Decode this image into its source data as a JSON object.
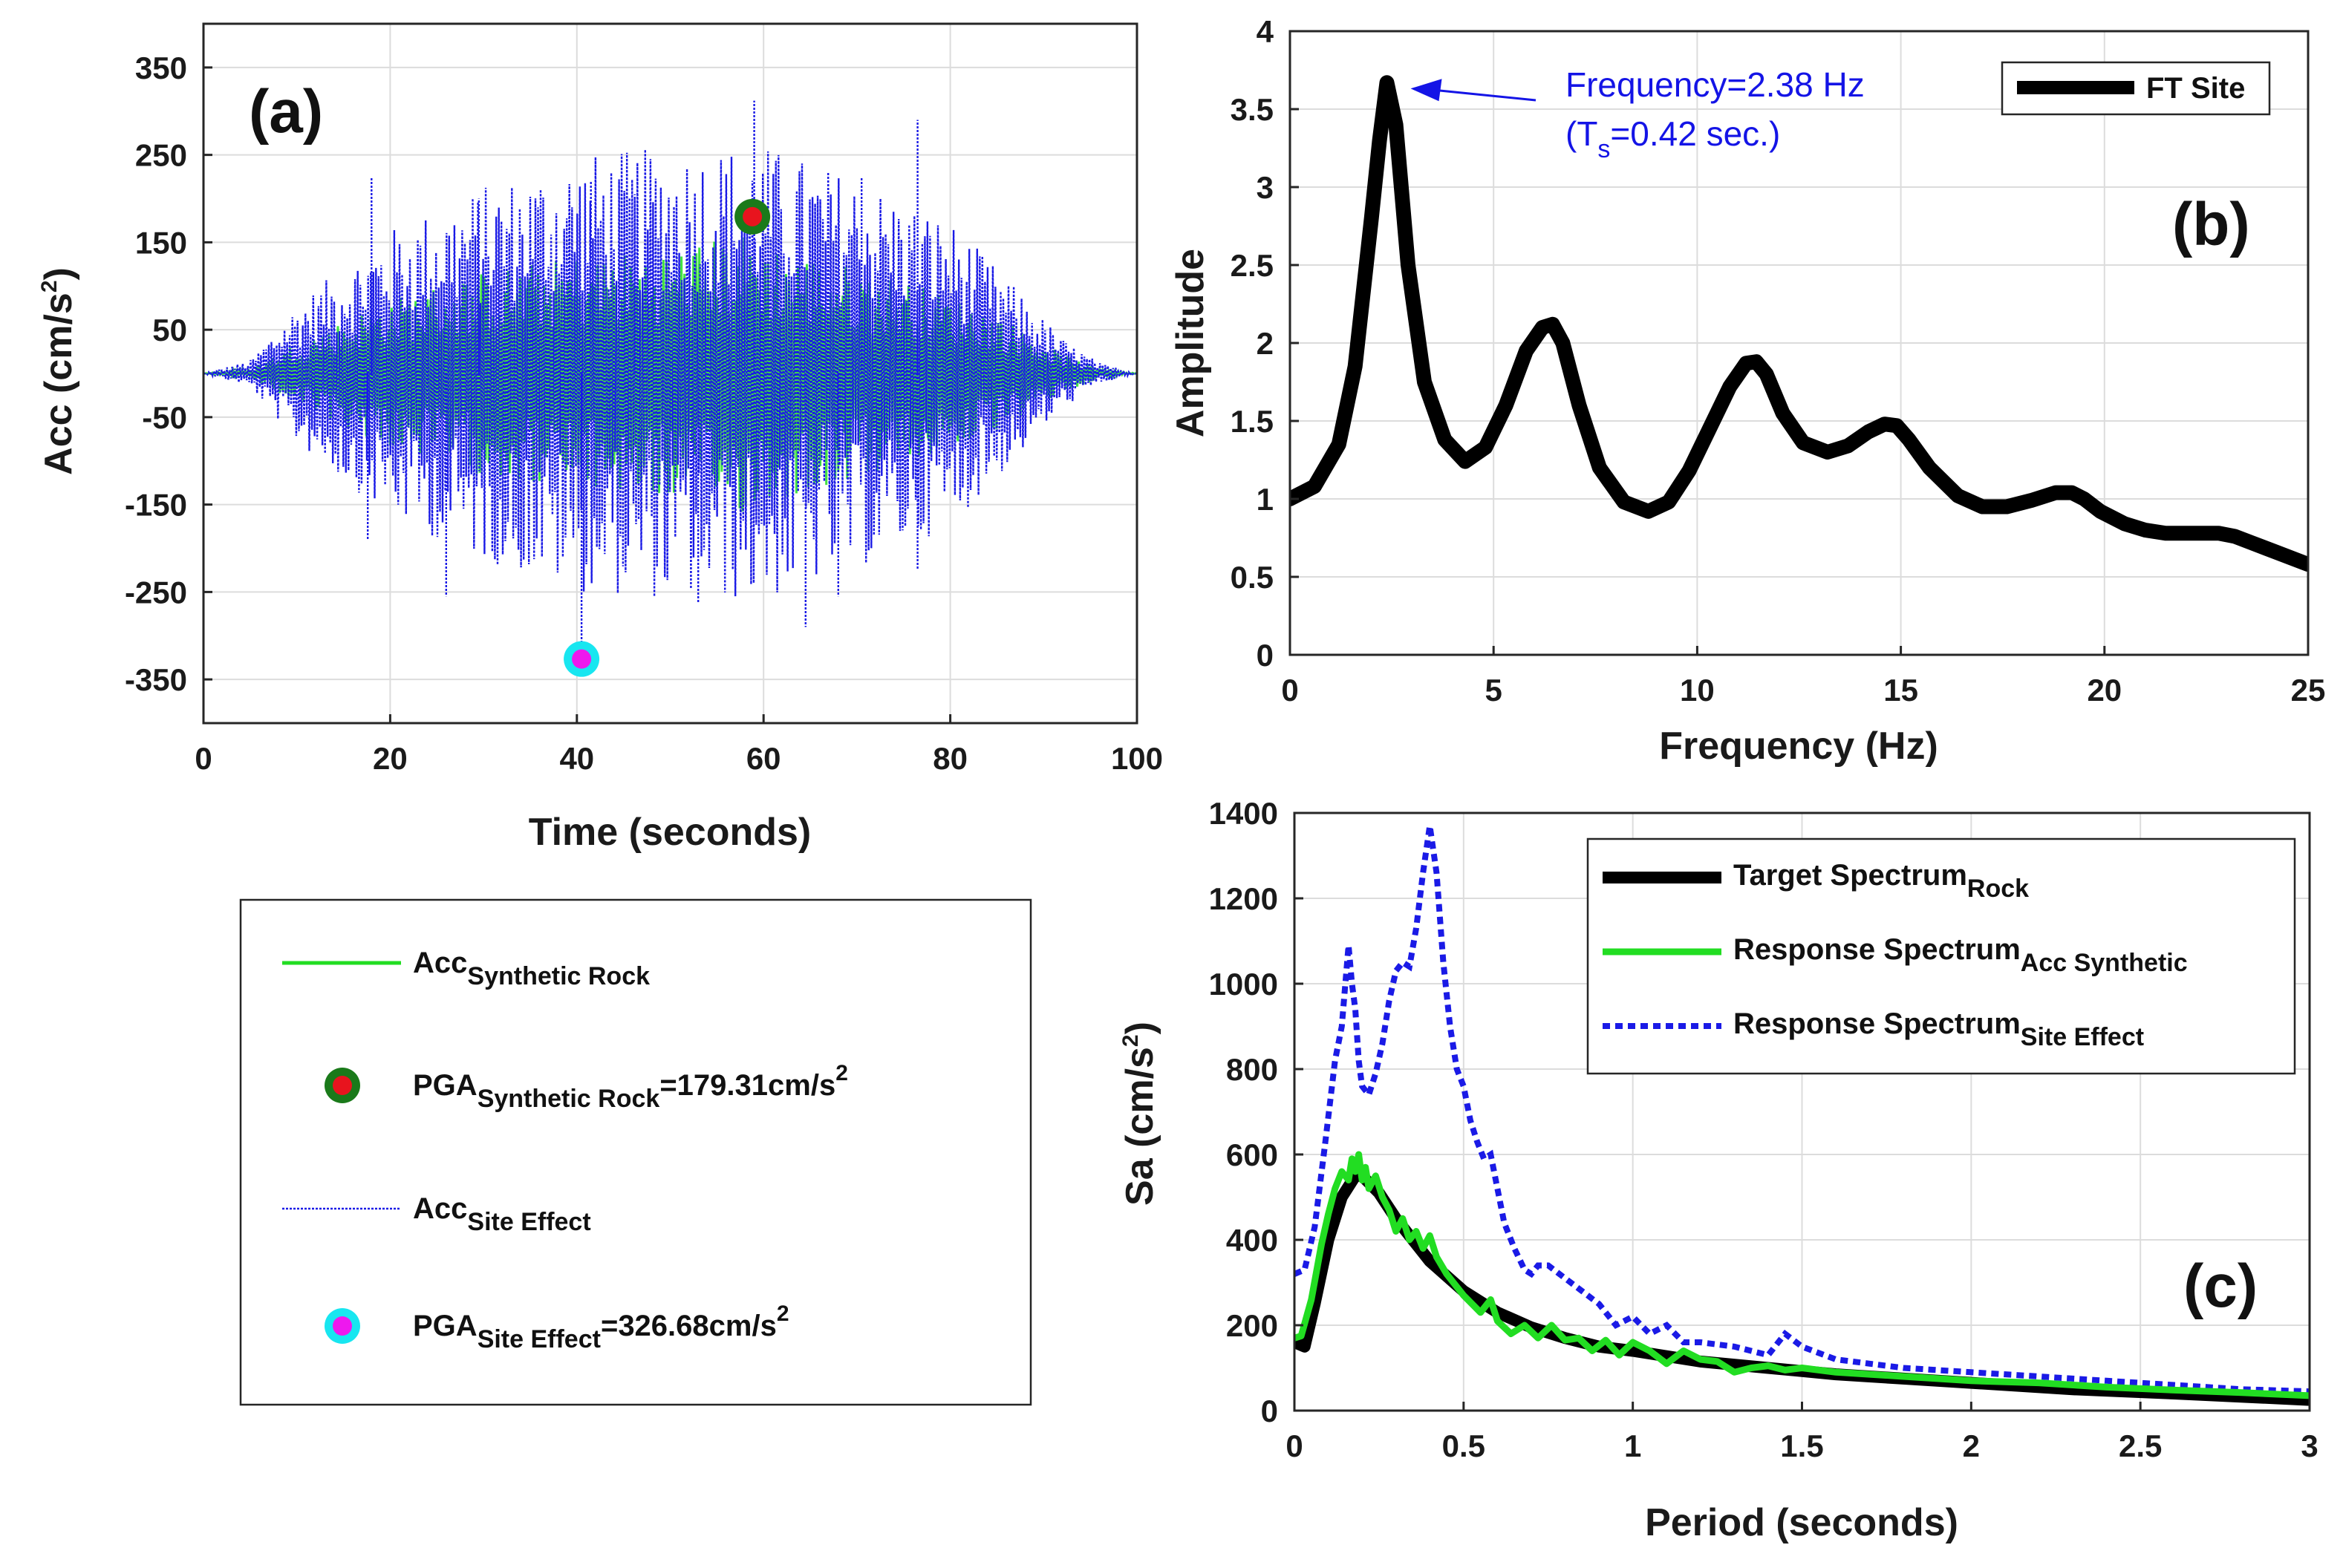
{
  "colors": {
    "rock": "#22dd22",
    "site": "#1a1ae6",
    "ft": "#000000",
    "target": "#000000",
    "pga_rock_fill": "#e8141e",
    "pga_rock_ring": "#1a7a1a",
    "pga_site_fill": "#ee18ee",
    "pga_site_ring": "#18e6f0",
    "annotation": "#1414e6",
    "grid": "#dcdcdc"
  },
  "chart_data": [
    {
      "id": "a",
      "type": "line",
      "panel_label": "(a)",
      "xlabel": "Time (seconds)",
      "ylabel": "Acc (cm/s",
      "ylabel_sup": "2",
      "ylabel_end": ")",
      "xlim": [
        0,
        100
      ],
      "ylim": [
        -400,
        400
      ],
      "xticks": [
        0,
        20,
        40,
        60,
        80,
        100
      ],
      "yticks": [
        350,
        250,
        150,
        50,
        -50,
        -150,
        -250,
        -350
      ],
      "grid": true,
      "series": [
        {
          "name": "Acc Synthetic Rock",
          "style": "solid",
          "envelope": [
            [
              0,
              0
            ],
            [
              5,
              6
            ],
            [
              10,
              40
            ],
            [
              20,
              95
            ],
            [
              30,
              130
            ],
            [
              40,
              150
            ],
            [
              50,
              160
            ],
            [
              58,
              179.31
            ],
            [
              65,
              150
            ],
            [
              75,
              120
            ],
            [
              85,
              75
            ],
            [
              92,
              25
            ],
            [
              96,
              6
            ],
            [
              100,
              0
            ]
          ]
        },
        {
          "name": "Acc Site Effect",
          "style": "dotted",
          "envelope": [
            [
              0,
              0
            ],
            [
              5,
              15
            ],
            [
              10,
              80
            ],
            [
              20,
              165
            ],
            [
              30,
              215
            ],
            [
              40,
              250
            ],
            [
              50,
              260
            ],
            [
              60,
              262
            ],
            [
              70,
              225
            ],
            [
              80,
              175
            ],
            [
              86,
              110
            ],
            [
              92,
              40
            ],
            [
              96,
              12
            ],
            [
              100,
              0
            ]
          ]
        }
      ],
      "spikes": [
        {
          "t": 40.5,
          "v": -326.68
        },
        {
          "t": 59.0,
          "v": 312
        },
        {
          "t": 76.5,
          "v": 290
        },
        {
          "t": 18.0,
          "v": 225
        },
        {
          "t": 17.6,
          "v": -190
        },
        {
          "t": 26.0,
          "v": -255
        },
        {
          "t": 41.5,
          "v": 220
        },
        {
          "t": 70.5,
          "v": 225
        },
        {
          "t": 68.0,
          "v": -255
        },
        {
          "t": 64.5,
          "v": -290
        },
        {
          "t": 76.5,
          "v": -225
        },
        {
          "t": 46.2,
          "v": 205
        },
        {
          "t": 53.0,
          "v": -262
        },
        {
          "t": 29.5,
          "v": 200
        }
      ],
      "markers": [
        {
          "name": "PGA Synthetic Rock",
          "t": 58.8,
          "v": 179.31,
          "kind": "rock"
        },
        {
          "name": "PGA Site Effect",
          "t": 40.5,
          "v": -326.68,
          "kind": "site"
        }
      ]
    },
    {
      "id": "b",
      "type": "line",
      "panel_label": "(b)",
      "xlabel": "Frequency (Hz)",
      "ylabel": "Amplitude",
      "xlim": [
        0,
        25
      ],
      "ylim": [
        0,
        4
      ],
      "xticks": [
        0,
        5,
        10,
        15,
        20,
        25
      ],
      "yticks": [
        0,
        0.5,
        1,
        1.5,
        2,
        2.5,
        3,
        3.5,
        4
      ],
      "grid": true,
      "legend": "FT Site",
      "annotation": {
        "line1": "Frequency=2.38 Hz",
        "line2_pre": "(T",
        "line2_sub": "s",
        "line2_post": "=0.42 sec.)",
        "peak_x": 2.38,
        "peak_y": 3.67
      },
      "series": [
        {
          "name": "FT Site",
          "x": [
            0,
            0.6,
            1.2,
            1.6,
            2.0,
            2.2,
            2.38,
            2.6,
            2.9,
            3.3,
            3.8,
            4.3,
            4.8,
            5.3,
            5.8,
            6.2,
            6.45,
            6.7,
            7.1,
            7.6,
            8.2,
            8.8,
            9.3,
            9.8,
            10.3,
            10.8,
            11.2,
            11.45,
            11.7,
            12.1,
            12.6,
            13.2,
            13.7,
            14.2,
            14.6,
            14.9,
            15.2,
            15.7,
            16.4,
            17.0,
            17.6,
            18.2,
            18.8,
            19.2,
            19.5,
            19.9,
            20.5,
            21.0,
            21.5,
            22.2,
            22.8,
            23.2,
            23.6,
            24.2,
            25
          ],
          "y": [
            1.0,
            1.08,
            1.35,
            1.85,
            2.8,
            3.3,
            3.67,
            3.4,
            2.5,
            1.75,
            1.38,
            1.24,
            1.33,
            1.6,
            1.95,
            2.1,
            2.12,
            2.0,
            1.6,
            1.2,
            0.98,
            0.92,
            0.98,
            1.18,
            1.45,
            1.72,
            1.87,
            1.88,
            1.8,
            1.55,
            1.36,
            1.3,
            1.34,
            1.43,
            1.48,
            1.47,
            1.38,
            1.2,
            1.02,
            0.95,
            0.95,
            0.99,
            1.04,
            1.04,
            1.0,
            0.92,
            0.84,
            0.8,
            0.78,
            0.78,
            0.78,
            0.76,
            0.72,
            0.66,
            0.58
          ]
        }
      ]
    },
    {
      "id": "c",
      "type": "line",
      "panel_label": "(c)",
      "xlabel": "Period (seconds)",
      "ylabel": "Sa (cm/s",
      "ylabel_sup": "2",
      "ylabel_end": ")",
      "xlim": [
        0,
        3
      ],
      "ylim": [
        0,
        1400
      ],
      "xticks": [
        0,
        0.5,
        1,
        1.5,
        2,
        2.5,
        3
      ],
      "xtick_labels": [
        "0",
        "0.5",
        "1",
        "1.5",
        "2",
        "2.5",
        "3"
      ],
      "yticks": [
        0,
        200,
        400,
        600,
        800,
        1000,
        1200,
        1400
      ],
      "grid": true,
      "series": [
        {
          "name": "Target Spectrum Rock",
          "style": "thick",
          "x": [
            0,
            0.03,
            0.06,
            0.1,
            0.14,
            0.18,
            0.2,
            0.25,
            0.3,
            0.35,
            0.4,
            0.5,
            0.6,
            0.7,
            0.8,
            0.9,
            1.0,
            1.2,
            1.4,
            1.6,
            1.8,
            2.0,
            2.3,
            2.6,
            3.0
          ],
          "y": [
            160,
            150,
            250,
            400,
            500,
            550,
            550,
            510,
            450,
            400,
            350,
            280,
            230,
            195,
            170,
            150,
            140,
            115,
            100,
            85,
            75,
            65,
            50,
            40,
            25
          ]
        },
        {
          "name": "Response Spectrum Acc Synthetic",
          "style": "green",
          "x": [
            0,
            0.02,
            0.05,
            0.08,
            0.1,
            0.12,
            0.14,
            0.16,
            0.17,
            0.18,
            0.19,
            0.2,
            0.21,
            0.22,
            0.24,
            0.26,
            0.28,
            0.3,
            0.32,
            0.34,
            0.36,
            0.38,
            0.4,
            0.42,
            0.45,
            0.5,
            0.55,
            0.58,
            0.6,
            0.64,
            0.68,
            0.72,
            0.76,
            0.8,
            0.84,
            0.88,
            0.92,
            0.96,
            1.0,
            1.05,
            1.1,
            1.15,
            1.2,
            1.25,
            1.3,
            1.35,
            1.4,
            1.45,
            1.5,
            1.6,
            1.7,
            1.8,
            1.9,
            2.0,
            2.2,
            2.4,
            2.6,
            2.8,
            3.0
          ],
          "y": [
            170,
            175,
            260,
            390,
            460,
            520,
            560,
            540,
            590,
            560,
            600,
            540,
            570,
            520,
            550,
            500,
            470,
            420,
            450,
            400,
            420,
            380,
            410,
            360,
            320,
            270,
            230,
            260,
            210,
            180,
            200,
            170,
            200,
            165,
            170,
            140,
            165,
            130,
            160,
            140,
            110,
            140,
            120,
            115,
            90,
            100,
            105,
            95,
            100,
            90,
            85,
            80,
            75,
            70,
            65,
            55,
            48,
            42,
            35
          ]
        },
        {
          "name": "Response Spectrum Site Effect",
          "style": "dotted",
          "x": [
            0,
            0.03,
            0.06,
            0.09,
            0.12,
            0.14,
            0.16,
            0.17,
            0.18,
            0.19,
            0.2,
            0.22,
            0.24,
            0.26,
            0.28,
            0.3,
            0.32,
            0.34,
            0.36,
            0.38,
            0.4,
            0.42,
            0.44,
            0.46,
            0.48,
            0.5,
            0.52,
            0.54,
            0.56,
            0.58,
            0.6,
            0.62,
            0.65,
            0.68,
            0.7,
            0.72,
            0.75,
            0.8,
            0.85,
            0.9,
            0.95,
            1.0,
            1.05,
            1.1,
            1.15,
            1.2,
            1.3,
            1.4,
            1.45,
            1.5,
            1.6,
            1.7,
            1.8,
            2.0,
            2.2,
            2.4,
            2.6,
            2.8,
            3.0
          ],
          "y": [
            320,
            330,
            430,
            620,
            820,
            900,
            1090,
            1000,
            940,
            820,
            760,
            740,
            790,
            860,
            960,
            1030,
            1050,
            1040,
            1130,
            1260,
            1370,
            1260,
            1050,
            900,
            800,
            760,
            680,
            630,
            590,
            600,
            520,
            440,
            380,
            330,
            320,
            340,
            340,
            310,
            280,
            250,
            200,
            220,
            180,
            200,
            160,
            160,
            150,
            130,
            180,
            150,
            120,
            110,
            100,
            90,
            80,
            70,
            60,
            50,
            45
          ]
        }
      ],
      "legend": [
        {
          "name": "Target Spectrum",
          "sub": "Rock"
        },
        {
          "name": "Response Spectrum",
          "sub": "Acc Synthetic"
        },
        {
          "name": "Response Spectrum",
          "sub": "Site Effect"
        }
      ]
    }
  ],
  "legend_a": {
    "items": [
      {
        "label": "Acc",
        "sub": "Synthetic Rock",
        "value": "",
        "sup": ""
      },
      {
        "label": "PGA",
        "sub": "Synthetic Rock",
        "value": "=179.31cm/s",
        "sup": "2"
      },
      {
        "label": "Acc",
        "sub": "Site Effect",
        "value": "",
        "sup": ""
      },
      {
        "label": "PGA",
        "sub": "Site Effect",
        "value": "=326.68cm/s",
        "sup": "2"
      }
    ]
  }
}
